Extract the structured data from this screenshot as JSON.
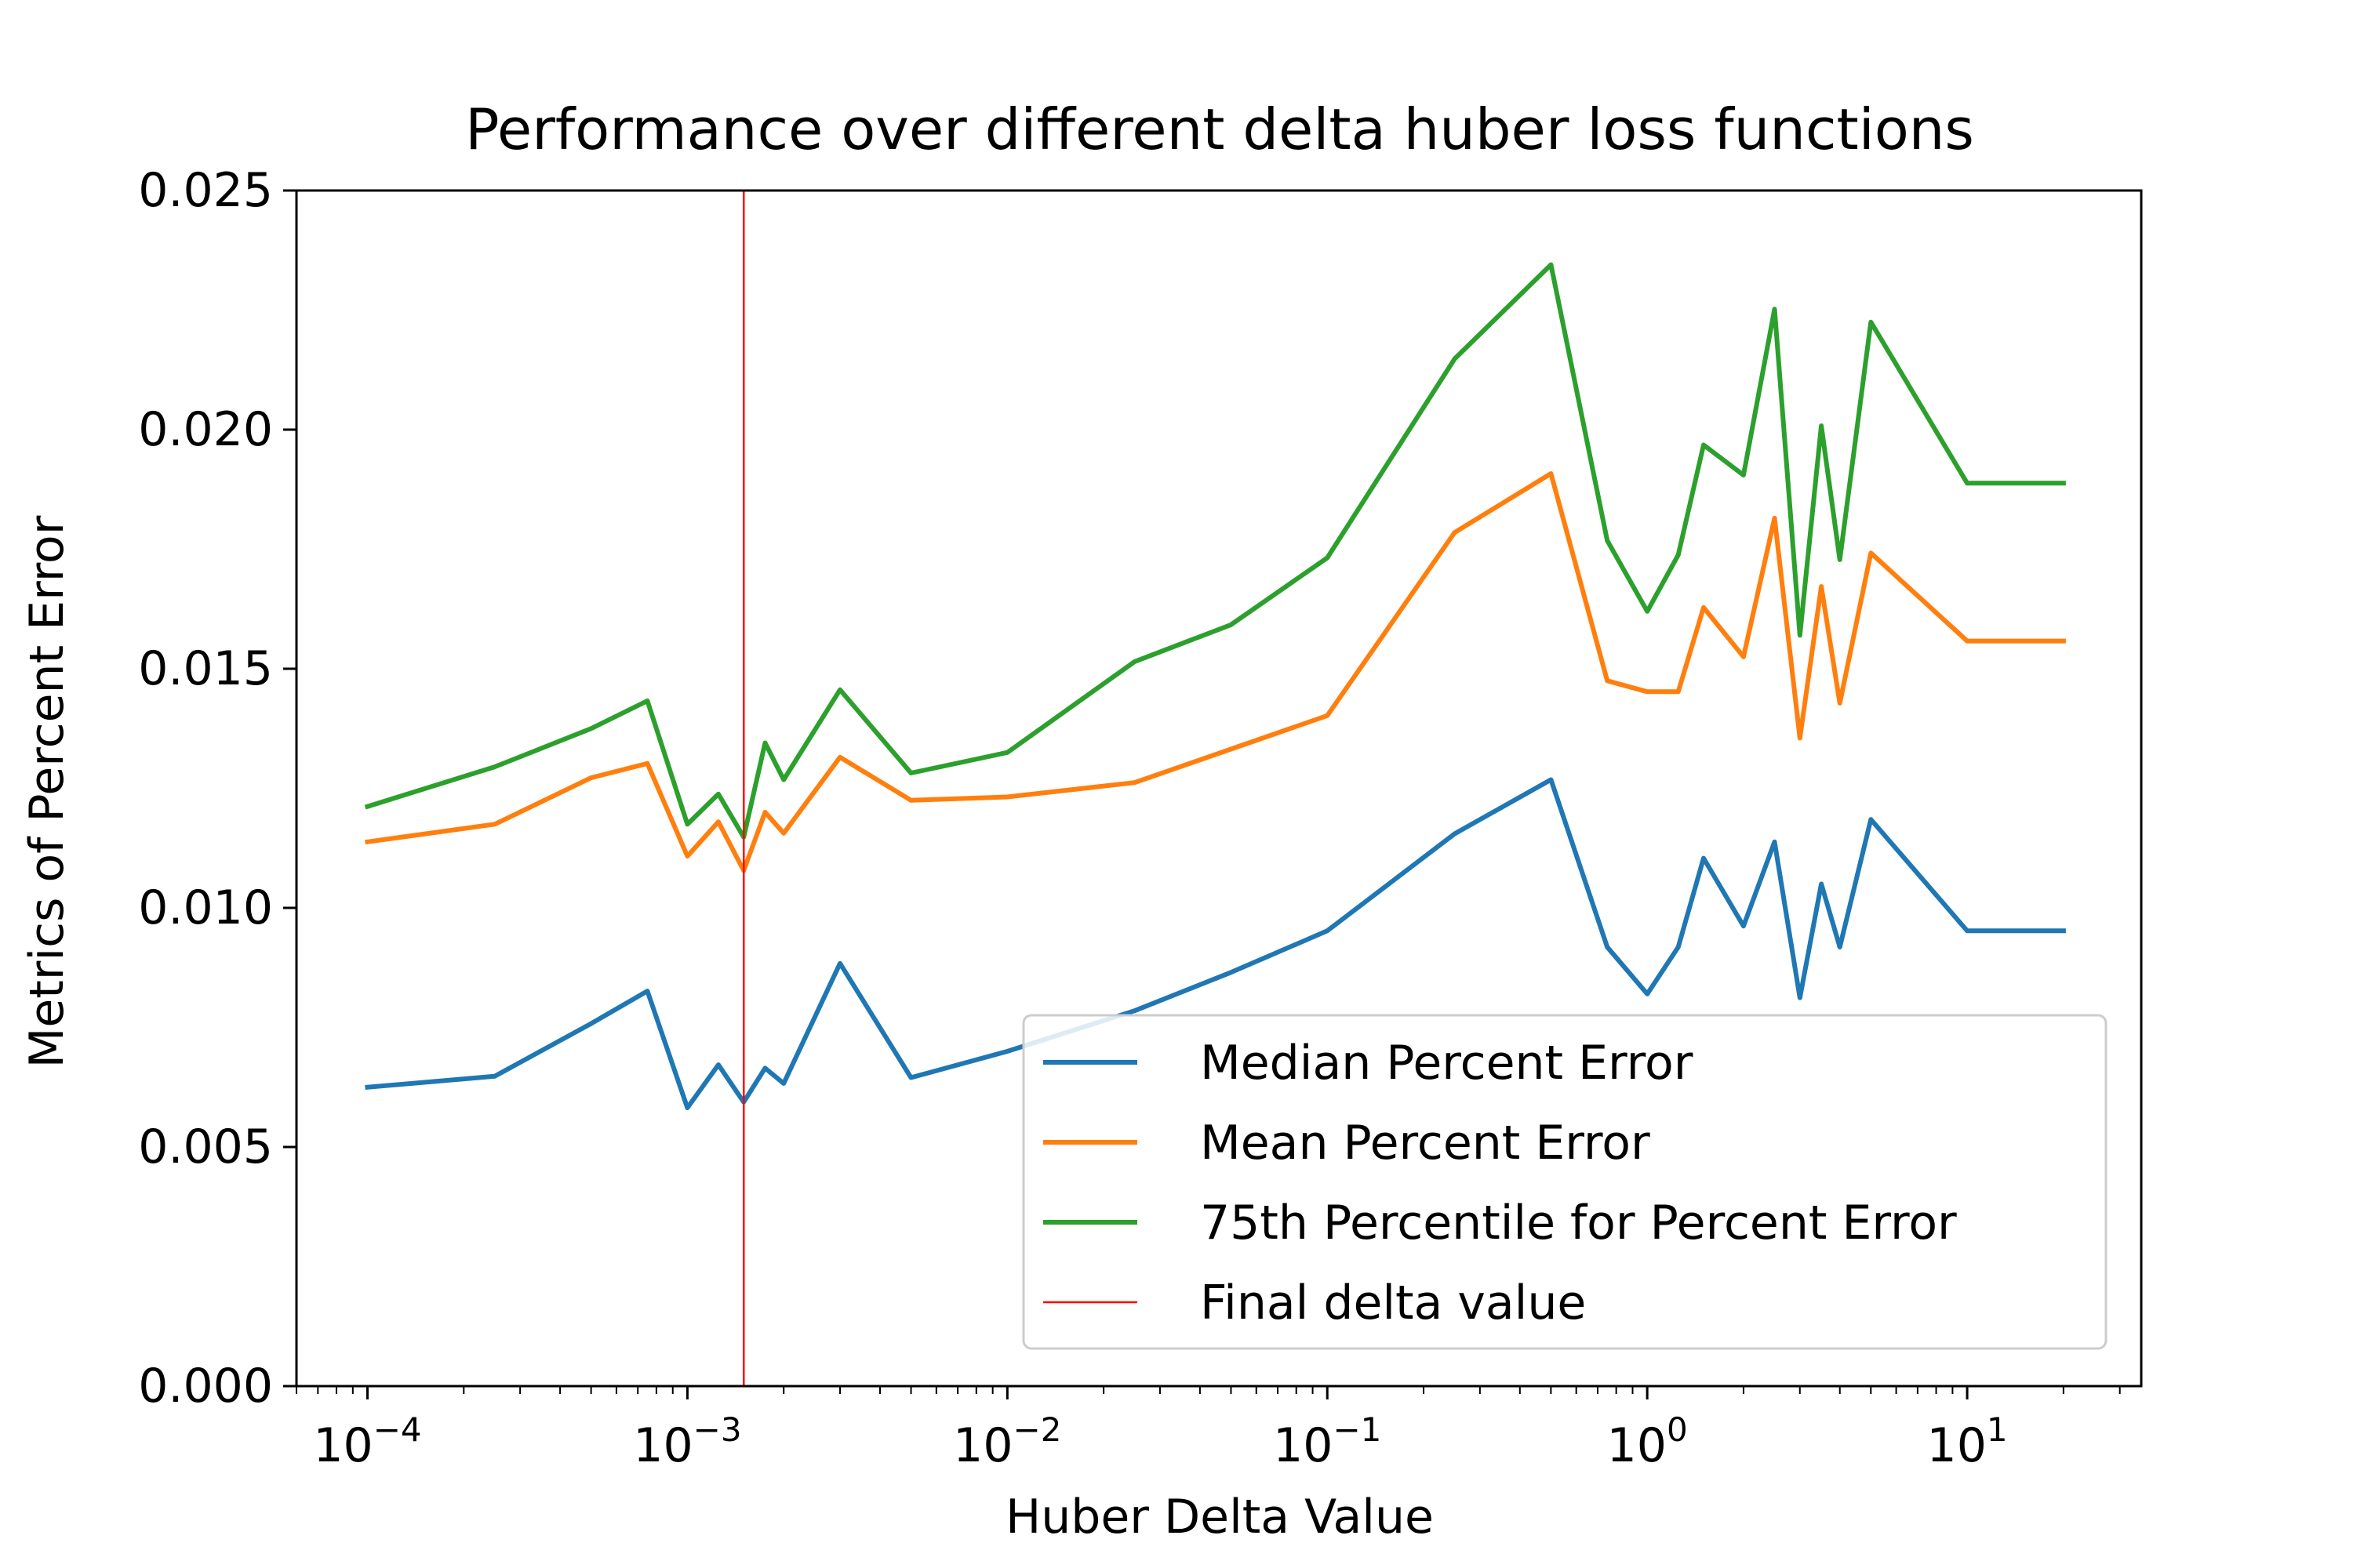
{
  "chart_data": {
    "type": "line",
    "title": "Performance over different delta huber loss functions",
    "xlabel": "Huber Delta Value",
    "ylabel": "Metrics of Percent Error",
    "xscale": "log",
    "xlim": [
      6e-05,
      35
    ],
    "ylim": [
      0,
      0.025
    ],
    "grid": false,
    "legend_position": "lower-right",
    "x": [
      0.0001,
      0.00025,
      0.0005,
      0.00075,
      0.001,
      0.00125,
      0.0015,
      0.00175,
      0.002,
      0.003,
      0.005,
      0.01,
      0.025,
      0.05,
      0.1,
      0.25,
      0.5,
      0.75,
      1,
      1.25,
      1.5,
      2,
      2.5,
      3,
      3.5,
      4,
      5,
      10,
      20
    ],
    "series": [
      {
        "name": "Median Percent Error",
        "color": "#1f77b4",
        "values": [
          0.00625,
          0.00648,
          0.00758,
          0.00826,
          0.00582,
          0.00672,
          0.00594,
          0.00665,
          0.00633,
          0.00884,
          0.00645,
          0.007,
          0.00785,
          0.00865,
          0.00952,
          0.01155,
          0.01268,
          0.00918,
          0.0082,
          0.00918,
          0.01104,
          0.00962,
          0.01138,
          0.00812,
          0.0105,
          0.00918,
          0.01185,
          0.00952,
          0.00952
        ]
      },
      {
        "name": "Mean Percent Error",
        "color": "#ff7f0e",
        "values": [
          0.01138,
          0.01175,
          0.01272,
          0.01302,
          0.01108,
          0.0118,
          0.01078,
          0.012,
          0.01156,
          0.01315,
          0.01225,
          0.01232,
          0.01262,
          0.01332,
          0.01402,
          0.01785,
          0.01908,
          0.01475,
          0.01452,
          0.01452,
          0.01628,
          0.01525,
          0.01815,
          0.01355,
          0.01672,
          0.01428,
          0.01742,
          0.01558,
          0.01558
        ]
      },
      {
        "name": "75th Percentile for Percent Error",
        "color": "#2ca02c",
        "values": [
          0.01212,
          0.01295,
          0.01375,
          0.01433,
          0.01175,
          0.01238,
          0.01148,
          0.01345,
          0.01268,
          0.01456,
          0.01282,
          0.01325,
          0.01515,
          0.01592,
          0.01732,
          0.02148,
          0.02345,
          0.01768,
          0.0162,
          0.01738,
          0.01968,
          0.01905,
          0.02252,
          0.0157,
          0.02008,
          0.01728,
          0.02225,
          0.01888,
          0.01888
        ]
      }
    ],
    "vline": {
      "name": "Final delta value",
      "x": 0.0015,
      "color": "#ff0000"
    },
    "yticks": [
      0,
      0.005,
      0.01,
      0.015,
      0.02,
      0.025
    ],
    "ytick_labels": [
      "0.000",
      "0.005",
      "0.010",
      "0.015",
      "0.020",
      "0.025"
    ],
    "xticks": [
      0.0001,
      0.001,
      0.01,
      0.1,
      1,
      10
    ],
    "xtick_labels": [
      {
        "base": "10",
        "exp": "−4"
      },
      {
        "base": "10",
        "exp": "−3"
      },
      {
        "base": "10",
        "exp": "−2"
      },
      {
        "base": "10",
        "exp": "−1"
      },
      {
        "base": "10",
        "exp": "0"
      },
      {
        "base": "10",
        "exp": "1"
      }
    ]
  }
}
